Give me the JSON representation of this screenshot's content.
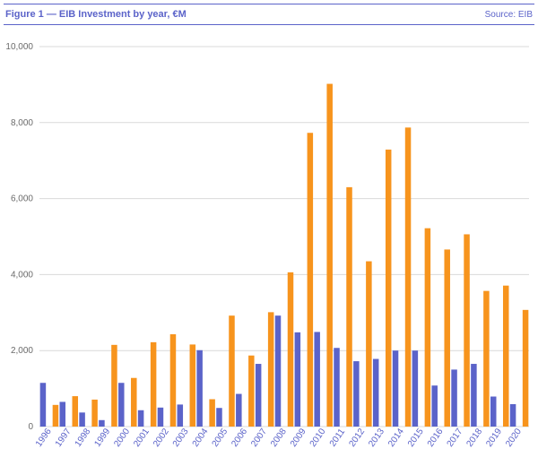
{
  "header": {
    "title": "Figure 1 — EIB Investment by year, €M",
    "source": "Source: EIB"
  },
  "colors": {
    "series_a": "#5b63c9",
    "series_b": "#f7941d",
    "grid": "#d9d9d9",
    "header_rule": "#5b63c9"
  },
  "chart_data": {
    "type": "bar",
    "title": "Figure 1 — EIB Investment by year, €M",
    "xlabel": "",
    "ylabel": "",
    "ylim": [
      0,
      10000
    ],
    "yticks": [
      0,
      2000,
      4000,
      6000,
      8000,
      10000
    ],
    "ytick_labels": [
      "0",
      "2,000",
      "4,000",
      "6,000",
      "8,000",
      "10,000"
    ],
    "grid": true,
    "legend": "none",
    "categories": [
      "1996",
      "1997",
      "1998",
      "1999",
      "2000",
      "2001",
      "2002",
      "2003",
      "2004",
      "2005",
      "2006",
      "2007",
      "2008",
      "2009",
      "2010",
      "2011",
      "2012",
      "2013",
      "2014",
      "2015",
      "2016",
      "2017",
      "2018",
      "2019",
      "2020"
    ],
    "series": [
      {
        "values": [
          1150,
          650,
          370,
          170,
          1150,
          430,
          500,
          580,
          2010,
          490,
          860,
          1650,
          2920,
          2480,
          2490,
          2070,
          1720,
          1780,
          2000,
          2000,
          1080,
          1500,
          1650,
          790,
          590
        ]
      },
      {
        "values": [
          570,
          800,
          710,
          2150,
          1280,
          2220,
          2430,
          2160,
          720,
          2920,
          1870,
          3010,
          4060,
          7730,
          9020,
          6300,
          4350,
          7290,
          7870,
          5220,
          4660,
          5060,
          3570,
          3710,
          3070
        ]
      }
    ]
  }
}
